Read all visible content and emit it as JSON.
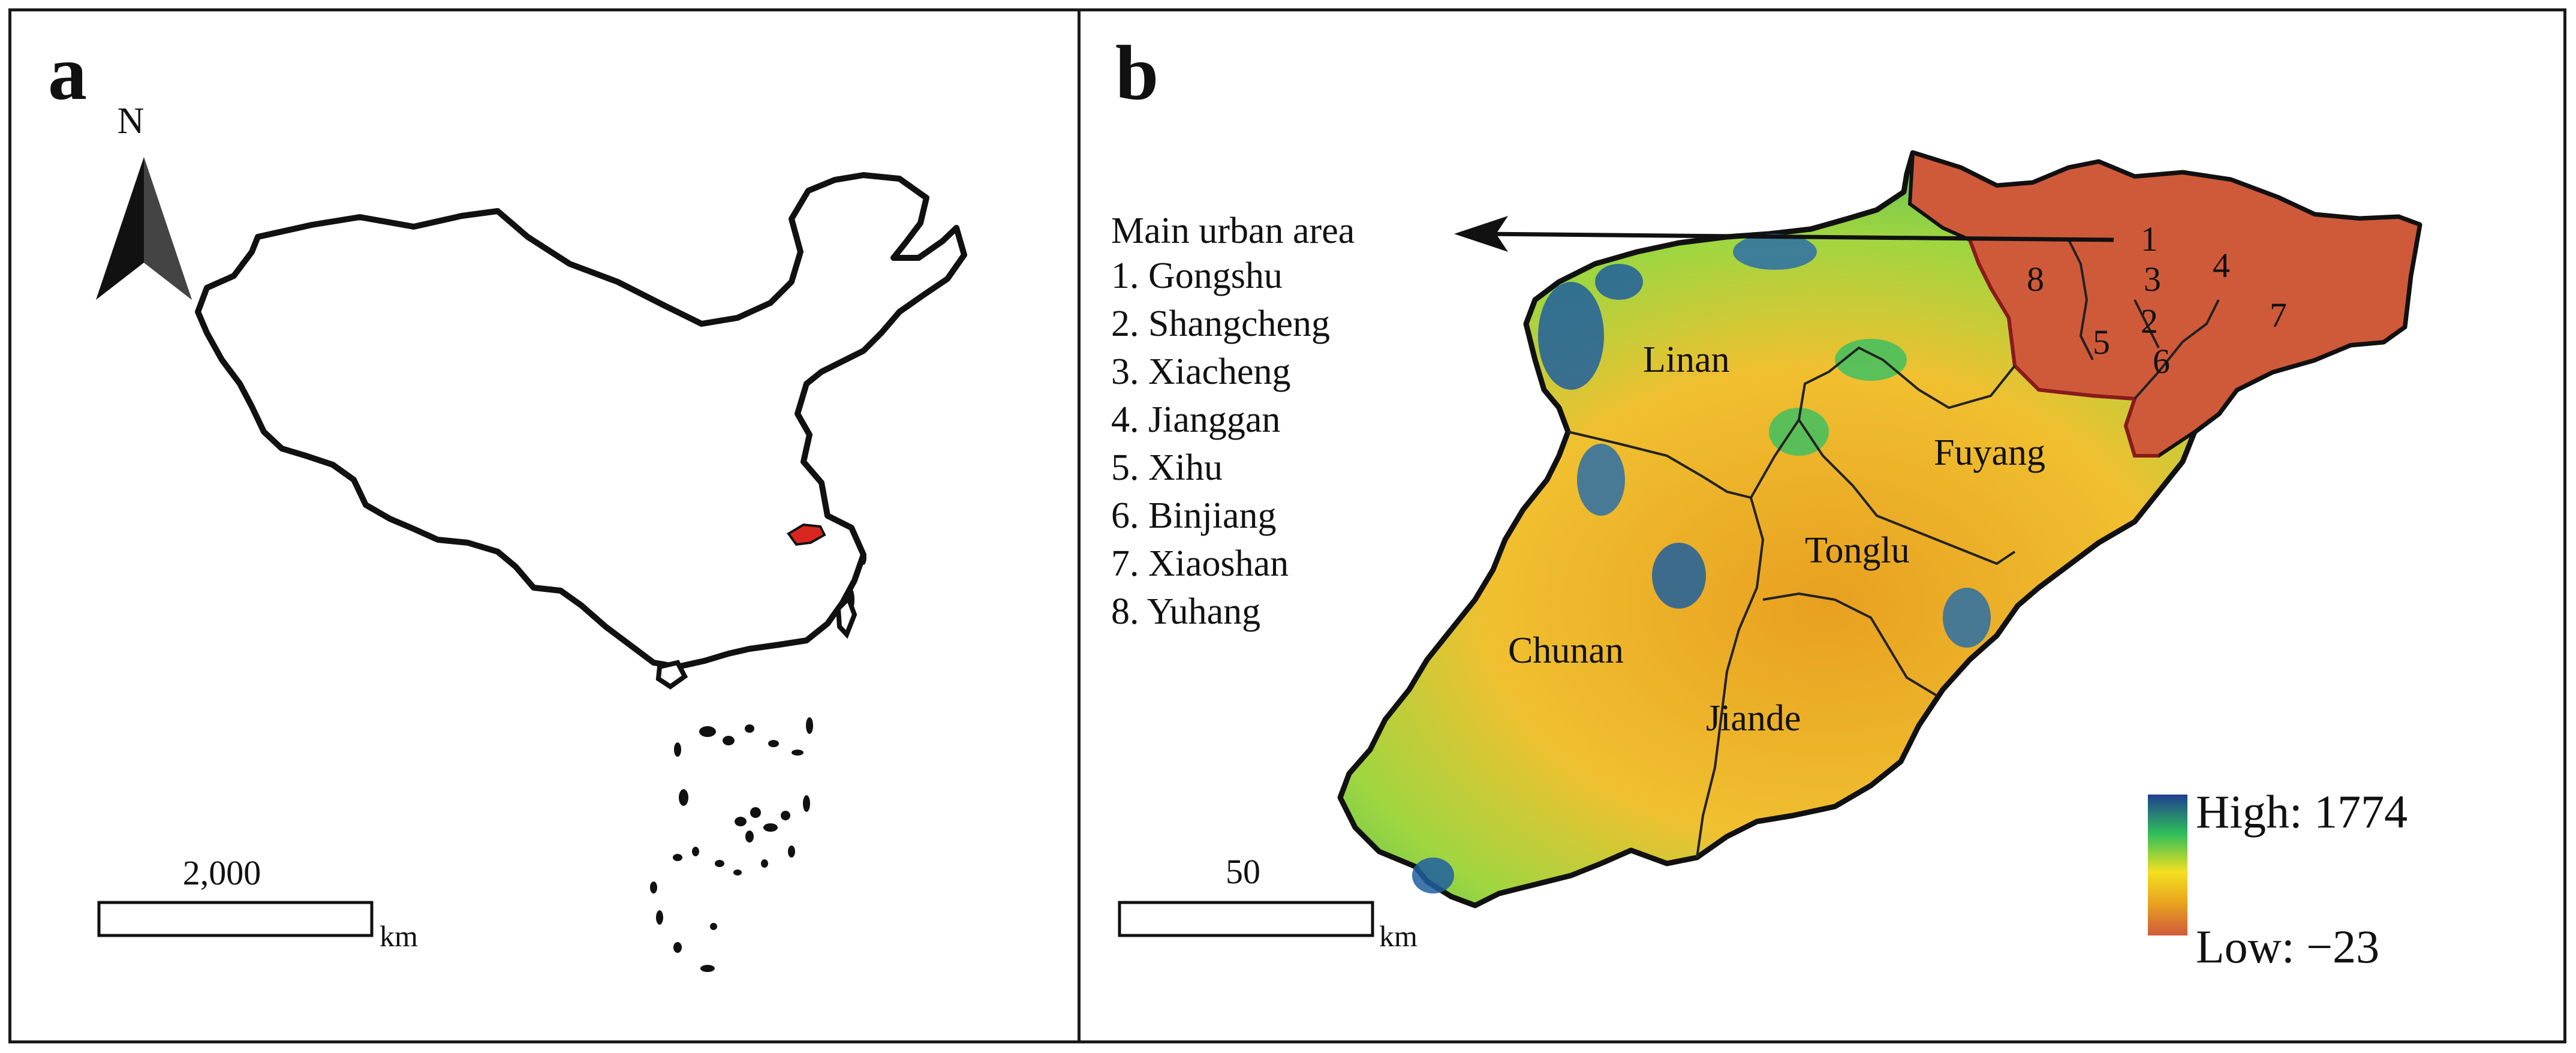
{
  "panel_a": {
    "label": "a",
    "north_arrow_label": "N",
    "scale_value": "2,000",
    "scale_unit": "km"
  },
  "panel_b": {
    "label": "b",
    "legend_title": "Main urban area",
    "urban_areas": [
      "1. Gongshu",
      "2. Shangcheng",
      "3. Xiacheng",
      "4. Jianggan",
      "5. Xihu",
      "6. Binjiang",
      "7. Xiaoshan",
      "8. Yuhang"
    ],
    "map_numbers": [
      "1",
      "2",
      "3",
      "4",
      "5",
      "6",
      "7",
      "8"
    ],
    "districts": [
      "Linan",
      "Fuyang",
      "Tonglu",
      "Chunan",
      "Jiande"
    ],
    "elevation_high": "High: 1774",
    "elevation_low": "Low: −23",
    "elevation_colors": [
      "#1f3f8f",
      "#2fbf5a",
      "#f4e020",
      "#e8a020",
      "#cf5a3a"
    ],
    "scale_value": "50",
    "scale_unit": "km"
  }
}
